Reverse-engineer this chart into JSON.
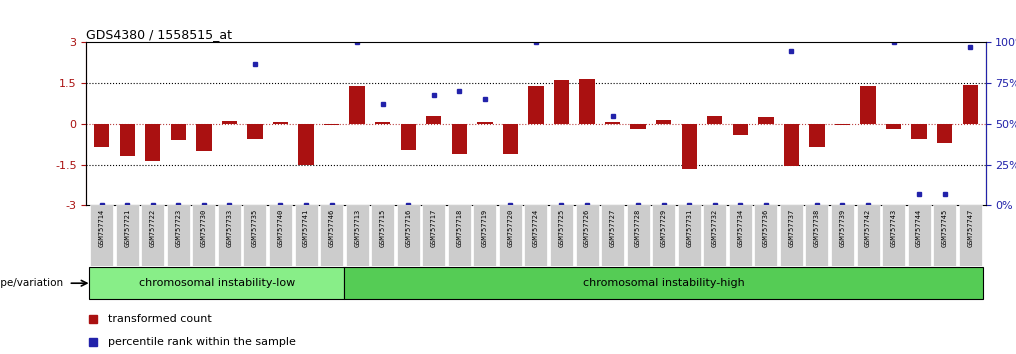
{
  "title": "GDS4380 / 1558515_at",
  "samples": [
    "GSM757714",
    "GSM757721",
    "GSM757722",
    "GSM757723",
    "GSM757730",
    "GSM757733",
    "GSM757735",
    "GSM757740",
    "GSM757741",
    "GSM757746",
    "GSM757713",
    "GSM757715",
    "GSM757716",
    "GSM757717",
    "GSM757718",
    "GSM757719",
    "GSM757720",
    "GSM757724",
    "GSM757725",
    "GSM757726",
    "GSM757727",
    "GSM757728",
    "GSM757729",
    "GSM757731",
    "GSM757732",
    "GSM757734",
    "GSM757736",
    "GSM757737",
    "GSM757738",
    "GSM757739",
    "GSM757742",
    "GSM757743",
    "GSM757744",
    "GSM757745",
    "GSM757747"
  ],
  "bar_values": [
    -0.85,
    -1.2,
    -1.35,
    -0.6,
    -1.0,
    0.1,
    -0.55,
    0.08,
    -1.5,
    -0.05,
    1.4,
    0.08,
    -0.95,
    0.28,
    -1.1,
    0.07,
    -1.1,
    1.4,
    1.6,
    1.65,
    0.07,
    -0.2,
    0.15,
    -1.65,
    0.3,
    -0.4,
    0.25,
    -1.55,
    -0.85,
    -0.05,
    1.38,
    -0.2,
    -0.55,
    -0.7,
    1.45
  ],
  "blue_values": [
    0,
    0,
    0,
    0,
    0,
    0,
    87,
    0,
    0,
    0,
    100,
    62,
    0,
    68,
    70,
    65,
    0,
    100,
    0,
    0,
    55,
    0,
    0,
    0,
    0,
    0,
    0,
    95,
    0,
    0,
    0,
    100,
    7,
    7,
    97
  ],
  "group_low_label": "chromosomal instability-low",
  "group_high_label": "chromosomal instability-high",
  "n_low": 10,
  "n_high": 25,
  "ylim_left": [
    -3.0,
    3.0
  ],
  "ylim_right": [
    0,
    100
  ],
  "hline_y": [
    1.5,
    -1.5
  ],
  "bar_color": "#AA1111",
  "blue_color": "#2222AA",
  "background_color": "#FFFFFF",
  "label_bar": "transformed count",
  "label_blue": "percentile rank within the sample",
  "gray_bg": "#CCCCCC",
  "green_low": "#88DD88",
  "green_high": "#55CC55"
}
